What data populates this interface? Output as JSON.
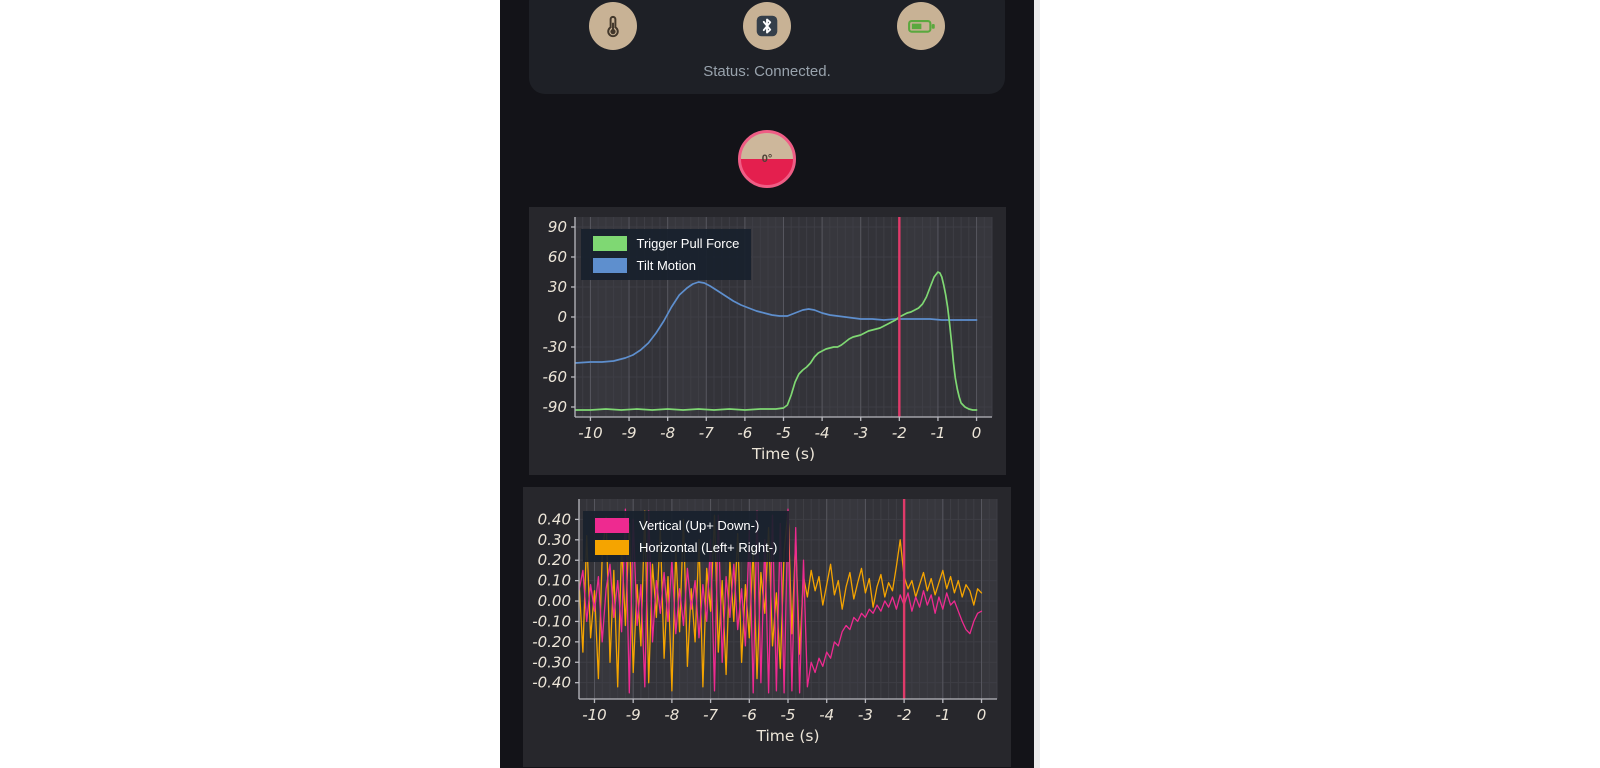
{
  "app": {
    "status_card": {
      "status_text": "Status: Connected.",
      "buttons": [
        {
          "name": "thermometer"
        },
        {
          "name": "bluetooth"
        },
        {
          "name": "battery"
        }
      ]
    },
    "dial": {
      "value_label": "0°"
    }
  },
  "colors": {
    "page_background": "#ffffff",
    "app_background": "#131318",
    "card_background": "#1e2026",
    "icon_circle": "#c8b295",
    "battery_green": "#5aa83e",
    "dial_top": "#cdb79b",
    "dial_bottom": "#e41f4e",
    "dial_border": "#ef5d85",
    "marker_pink": "#e03a6a"
  },
  "chart_data": [
    {
      "type": "line",
      "title": "",
      "xlabel": "Time (s)",
      "ylabel": "",
      "xlim": [
        -10.4,
        0.4
      ],
      "ylim": [
        -100,
        100
      ],
      "x_ticks": [
        -10,
        -9,
        -8,
        -7,
        -6,
        -5,
        -4,
        -3,
        -2,
        -1,
        0
      ],
      "x_tick_labels": [
        "-10",
        "-9",
        "-8",
        "-7",
        "-6",
        "-5",
        "-4",
        "-3",
        "-2",
        "-1",
        "0"
      ],
      "y_ticks": [
        90,
        60,
        30,
        0,
        -30,
        -60,
        -90
      ],
      "y_tick_labels": [
        "90",
        "60",
        "30",
        "0",
        "-30",
        "-60",
        "-90"
      ],
      "grid": true,
      "legend_position": "top-left",
      "marker_x": -2,
      "marker_color": "#e03a6a",
      "line_width": 1.7,
      "panel_bg": "#27272c",
      "plot_bg": "#333339",
      "band_color": "#37373d",
      "grid_minor_color": "#3e3e45",
      "grid_major_color": "#56565e",
      "axis_color": "#b9b9bf",
      "series": [
        {
          "name": "Trigger Pull Force",
          "color": "#7fd873",
          "points": [
            [
              -10.4,
              -93
            ],
            [
              -10,
              -93
            ],
            [
              -9.6,
              -92
            ],
            [
              -9.2,
              -93
            ],
            [
              -8.8,
              -92
            ],
            [
              -8.4,
              -93
            ],
            [
              -8,
              -92
            ],
            [
              -7.6,
              -93
            ],
            [
              -7.2,
              -92
            ],
            [
              -6.8,
              -93
            ],
            [
              -6.4,
              -92
            ],
            [
              -6,
              -93
            ],
            [
              -5.6,
              -92
            ],
            [
              -5.2,
              -92
            ],
            [
              -5,
              -91
            ],
            [
              -4.9,
              -88
            ],
            [
              -4.8,
              -78
            ],
            [
              -4.7,
              -65
            ],
            [
              -4.6,
              -57
            ],
            [
              -4.5,
              -53
            ],
            [
              -4.4,
              -50
            ],
            [
              -4.3,
              -46
            ],
            [
              -4.2,
              -40
            ],
            [
              -4.1,
              -36
            ],
            [
              -4,
              -34
            ],
            [
              -3.9,
              -32
            ],
            [
              -3.8,
              -31
            ],
            [
              -3.7,
              -30
            ],
            [
              -3.6,
              -30
            ],
            [
              -3.5,
              -28
            ],
            [
              -3.4,
              -25
            ],
            [
              -3.3,
              -22
            ],
            [
              -3.2,
              -20
            ],
            [
              -3.1,
              -19
            ],
            [
              -3,
              -18
            ],
            [
              -2.9,
              -16
            ],
            [
              -2.8,
              -14
            ],
            [
              -2.7,
              -13
            ],
            [
              -2.6,
              -12
            ],
            [
              -2.5,
              -11
            ],
            [
              -2.4,
              -9
            ],
            [
              -2.3,
              -7
            ],
            [
              -2.2,
              -5
            ],
            [
              -2.1,
              -3
            ],
            [
              -2,
              0
            ],
            [
              -1.9,
              2
            ],
            [
              -1.8,
              4
            ],
            [
              -1.7,
              5
            ],
            [
              -1.6,
              7
            ],
            [
              -1.5,
              9
            ],
            [
              -1.4,
              13
            ],
            [
              -1.3,
              20
            ],
            [
              -1.2,
              30
            ],
            [
              -1.1,
              40
            ],
            [
              -1,
              45
            ],
            [
              -0.95,
              44
            ],
            [
              -0.9,
              40
            ],
            [
              -0.85,
              32
            ],
            [
              -0.8,
              22
            ],
            [
              -0.75,
              10
            ],
            [
              -0.7,
              -6
            ],
            [
              -0.65,
              -25
            ],
            [
              -0.6,
              -45
            ],
            [
              -0.55,
              -61
            ],
            [
              -0.5,
              -72
            ],
            [
              -0.45,
              -80
            ],
            [
              -0.4,
              -86
            ],
            [
              -0.3,
              -90
            ],
            [
              -0.2,
              -92
            ],
            [
              -0.1,
              -93
            ],
            [
              0,
              -93
            ]
          ]
        },
        {
          "name": "Tilt Motion",
          "color": "#5e8fce",
          "points": [
            [
              -10.4,
              -46
            ],
            [
              -10,
              -45
            ],
            [
              -9.7,
              -45
            ],
            [
              -9.4,
              -44
            ],
            [
              -9.1,
              -41
            ],
            [
              -8.9,
              -38
            ],
            [
              -8.7,
              -33
            ],
            [
              -8.5,
              -26
            ],
            [
              -8.3,
              -16
            ],
            [
              -8.1,
              -4
            ],
            [
              -7.9,
              10
            ],
            [
              -7.7,
              22
            ],
            [
              -7.5,
              29
            ],
            [
              -7.35,
              33
            ],
            [
              -7.2,
              35
            ],
            [
              -7.05,
              34
            ],
            [
              -6.9,
              31
            ],
            [
              -6.7,
              26
            ],
            [
              -6.5,
              21
            ],
            [
              -6.3,
              16
            ],
            [
              -6.1,
              12
            ],
            [
              -5.9,
              9
            ],
            [
              -5.7,
              6
            ],
            [
              -5.5,
              4
            ],
            [
              -5.3,
              2
            ],
            [
              -5.1,
              1
            ],
            [
              -4.9,
              1
            ],
            [
              -4.7,
              4
            ],
            [
              -4.5,
              7
            ],
            [
              -4.35,
              8
            ],
            [
              -4.2,
              7
            ],
            [
              -4,
              4
            ],
            [
              -3.8,
              2
            ],
            [
              -3.6,
              1
            ],
            [
              -3.4,
              0
            ],
            [
              -3.2,
              -1
            ],
            [
              -3,
              -2
            ],
            [
              -2.7,
              -2
            ],
            [
              -2.4,
              -3
            ],
            [
              -2.1,
              -2
            ],
            [
              -1.8,
              -2
            ],
            [
              -1.5,
              -2
            ],
            [
              -1.2,
              -2
            ],
            [
              -0.9,
              -3
            ],
            [
              -0.6,
              -3
            ],
            [
              -0.3,
              -3
            ],
            [
              0,
              -3
            ]
          ]
        }
      ]
    },
    {
      "type": "line",
      "title": "",
      "xlabel": "Time (s)",
      "ylabel": "",
      "xlim": [
        -10.4,
        0.4
      ],
      "ylim": [
        -0.48,
        0.5
      ],
      "x_ticks": [
        -10,
        -9,
        -8,
        -7,
        -6,
        -5,
        -4,
        -3,
        -2,
        -1,
        0
      ],
      "x_tick_labels": [
        "-10",
        "-9",
        "-8",
        "-7",
        "-6",
        "-5",
        "-4",
        "-3",
        "-2",
        "-1",
        "0"
      ],
      "y_ticks": [
        0.4,
        0.3,
        0.2,
        0.1,
        0.0,
        -0.1,
        -0.2,
        -0.3,
        -0.4
      ],
      "y_tick_labels": [
        "0.40",
        "0.30",
        "0.20",
        "0.10",
        "0.00",
        "-0.10",
        "-0.20",
        "-0.30",
        "-0.40"
      ],
      "grid": true,
      "legend_position": "top-left",
      "marker_x": -2,
      "marker_color": "#e03a6a",
      "line_width": 1.3,
      "panel_bg": "#27272c",
      "plot_bg": "#333339",
      "band_color": "#37373d",
      "grid_minor_color": "#3e3e45",
      "grid_major_color": "#56565e",
      "axis_color": "#b9b9bf",
      "x_start": -10.4,
      "x_step": 0.1,
      "series": [
        {
          "name": "Vertical (Up+ Down-)",
          "color": "#ee2a90",
          "values": [
            0.05,
            0.15,
            -0.1,
            0.08,
            -0.05,
            0.12,
            -0.2,
            0.06,
            0.18,
            -0.08,
            0.1,
            -0.15,
            0.45,
            -0.45,
            0.4,
            -0.12,
            0.08,
            -0.42,
            0.44,
            -0.2,
            0.1,
            -0.06,
            0.14,
            -0.1,
            0.2,
            -0.16,
            0.06,
            -0.12,
            0.16,
            -0.04,
            0.1,
            -0.18,
            0.08,
            -0.1,
            0.3,
            -0.44,
            0.42,
            -0.3,
            0.12,
            -0.08,
            0.18,
            -0.14,
            0.06,
            -0.22,
            0.35,
            -0.45,
            0.44,
            -0.4,
            0.3,
            -0.45,
            0.42,
            -0.44,
            0.38,
            -0.45,
            0.45,
            -0.44,
            0.36,
            -0.45,
            0.2,
            -0.42,
            -0.3,
            -0.35,
            -0.28,
            -0.32,
            -0.25,
            -0.28,
            -0.2,
            -0.22,
            -0.15,
            -0.12,
            -0.14,
            -0.08,
            -0.1,
            -0.06,
            -0.08,
            -0.04,
            -0.06,
            -0.02,
            -0.05,
            0.0,
            -0.03,
            0.02,
            -0.04,
            0.03,
            -0.02,
            0.04,
            -0.05,
            0.02,
            -0.03,
            0.05,
            -0.02,
            0.03,
            -0.06,
            0.02,
            -0.04,
            0.04,
            -0.02,
            0.0,
            -0.05,
            -0.1,
            -0.14,
            -0.16,
            -0.1,
            -0.06,
            -0.05
          ]
        },
        {
          "name": "Horizontal (Left+ Right-)",
          "color": "#f5a400",
          "values": [
            0.1,
            -0.25,
            0.32,
            -0.18,
            0.05,
            -0.38,
            0.22,
            0.41,
            -0.3,
            0.15,
            -0.42,
            0.28,
            -0.12,
            0.38,
            -0.35,
            0.08,
            -0.22,
            0.44,
            -0.4,
            0.18,
            -0.08,
            0.35,
            -0.28,
            0.12,
            -0.44,
            0.25,
            -0.15,
            0.4,
            -0.32,
            0.06,
            -0.2,
            0.3,
            -0.42,
            0.16,
            -0.05,
            0.42,
            -0.25,
            0.1,
            -0.36,
            0.2,
            -0.1,
            0.33,
            -0.3,
            0.08,
            -0.18,
            0.26,
            -0.38,
            0.14,
            -0.06,
            0.36,
            -0.22,
            0.04,
            -0.33,
            0.24,
            0.44,
            -0.16,
            0.3,
            -0.26,
            0.12,
            0.02,
            0.15,
            0.05,
            0.12,
            -0.02,
            0.08,
            0.18,
            0.03,
            0.1,
            -0.04,
            0.07,
            0.14,
            0.01,
            0.09,
            0.16,
            0.04,
            0.11,
            -0.03,
            0.07,
            0.13,
            0.02,
            0.09,
            0.05,
            0.17,
            0.3,
            0.12,
            0.06,
            0.1,
            0.02,
            0.08,
            0.14,
            0.05,
            0.11,
            0.03,
            0.09,
            0.15,
            0.06,
            0.12,
            0.04,
            0.1,
            0.02,
            0.08,
            0.05,
            -0.02,
            0.06,
            0.04
          ]
        }
      ]
    }
  ]
}
